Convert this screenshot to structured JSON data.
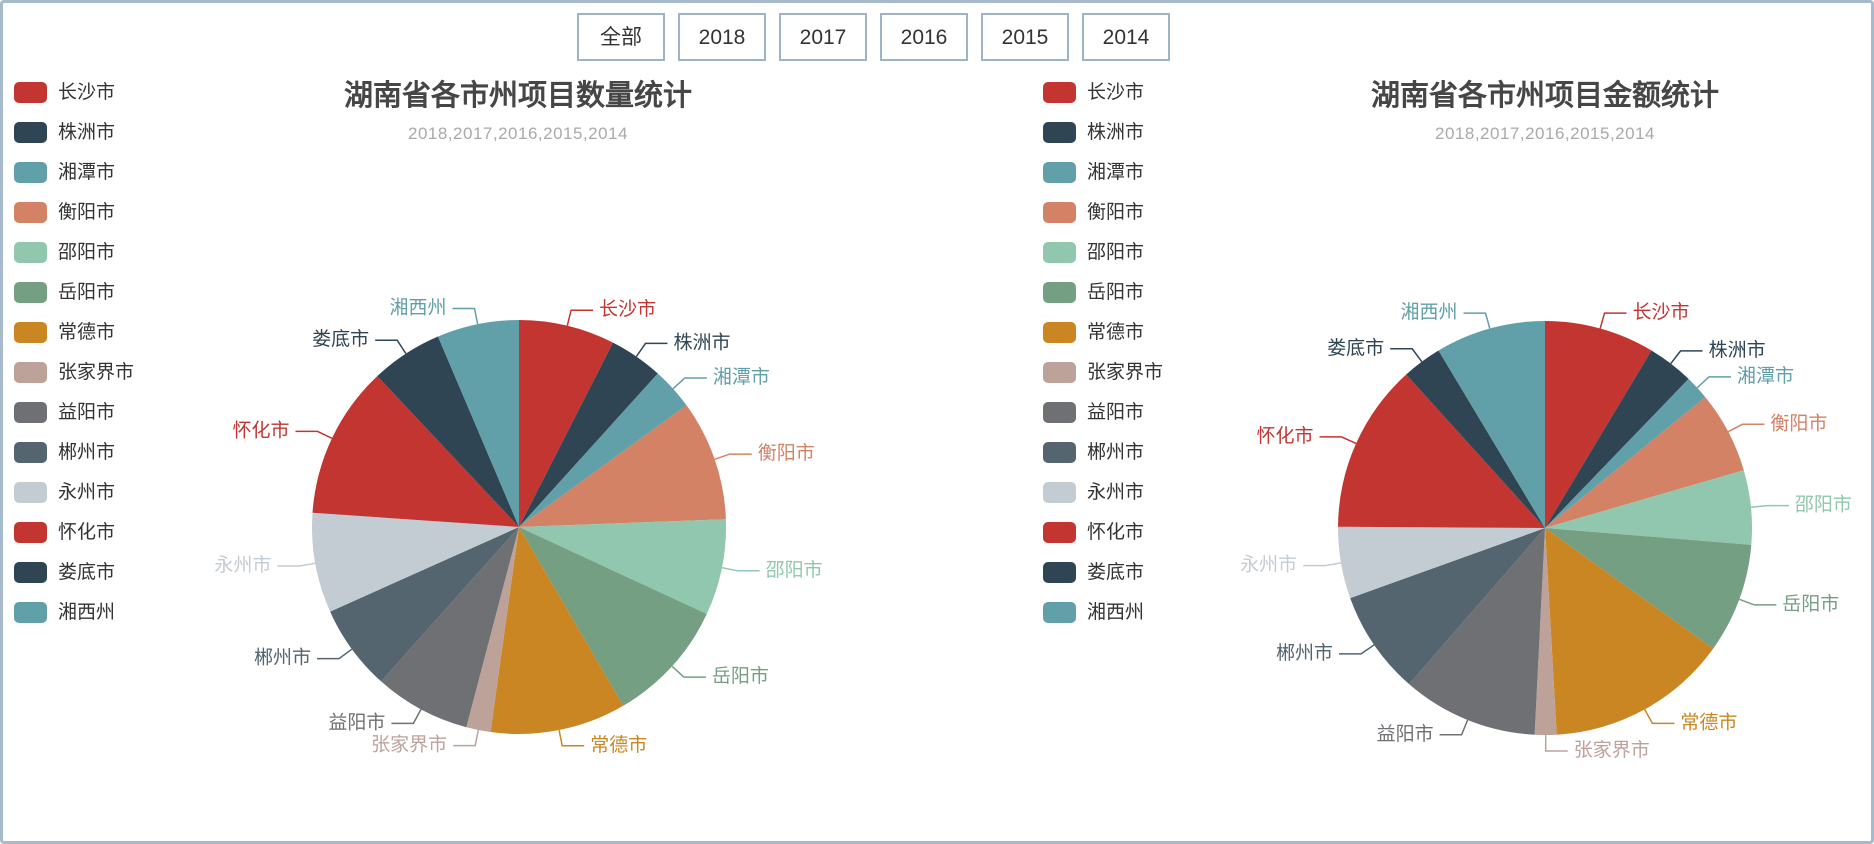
{
  "filter_bar": {
    "buttons": [
      "全部",
      "2018",
      "2017",
      "2016",
      "2015",
      "2014"
    ]
  },
  "chart_data": [
    {
      "type": "pie",
      "title": "湖南省各市州项目数量统计",
      "subtitle": "2018,2017,2016,2015,2014",
      "legend_position": "left",
      "labels": "outside, colored as slice, with leader lines",
      "categories": [
        "长沙市",
        "株洲市",
        "湘潭市",
        "衡阳市",
        "邵阳市",
        "岳阳市",
        "常德市",
        "张家界市",
        "益阳市",
        "郴州市",
        "永州市",
        "怀化市",
        "娄底市",
        "湘西州"
      ],
      "values_percent": [
        7.5,
        4.2,
        3.3,
        9.4,
        7.5,
        9.7,
        10.6,
        1.9,
        7.5,
        6.7,
        7.8,
        11.9,
        5.6,
        6.4
      ],
      "colors": [
        "#c23531",
        "#2f4554",
        "#61a0a8",
        "#d48265",
        "#91c7ae",
        "#749f83",
        "#ca8622",
        "#bda29a",
        "#6e7074",
        "#546570",
        "#c4ccd3",
        "#c23531",
        "#2f4554",
        "#61a0a8"
      ]
    },
    {
      "type": "pie",
      "title": "湖南省各市州项目金额统计",
      "subtitle": "2018,2017,2016,2015,2014",
      "legend_position": "left",
      "labels": "outside, colored as slice, with leader lines",
      "categories": [
        "长沙市",
        "株洲市",
        "湘潭市",
        "衡阳市",
        "邵阳市",
        "岳阳市",
        "常德市",
        "张家界市",
        "益阳市",
        "郴州市",
        "永州市",
        "怀化市",
        "娄底市",
        "湘西州"
      ],
      "values_percent": [
        8.6,
        3.6,
        1.9,
        6.4,
        5.8,
        8.6,
        14.2,
        1.7,
        10.6,
        8.1,
        5.6,
        13.2,
        3.1,
        8.6
      ],
      "colors": [
        "#c23531",
        "#2f4554",
        "#61a0a8",
        "#d48265",
        "#91c7ae",
        "#749f83",
        "#ca8622",
        "#bda29a",
        "#6e7074",
        "#546570",
        "#c4ccd3",
        "#c23531",
        "#2f4554",
        "#61a0a8"
      ]
    }
  ],
  "style": {
    "page_border_color": "#a7bacc",
    "button_border_color": "#9db3c8",
    "title_color": "#464646",
    "subtitle_color": "#a9a9a9",
    "legend_text_color": "#333333"
  }
}
